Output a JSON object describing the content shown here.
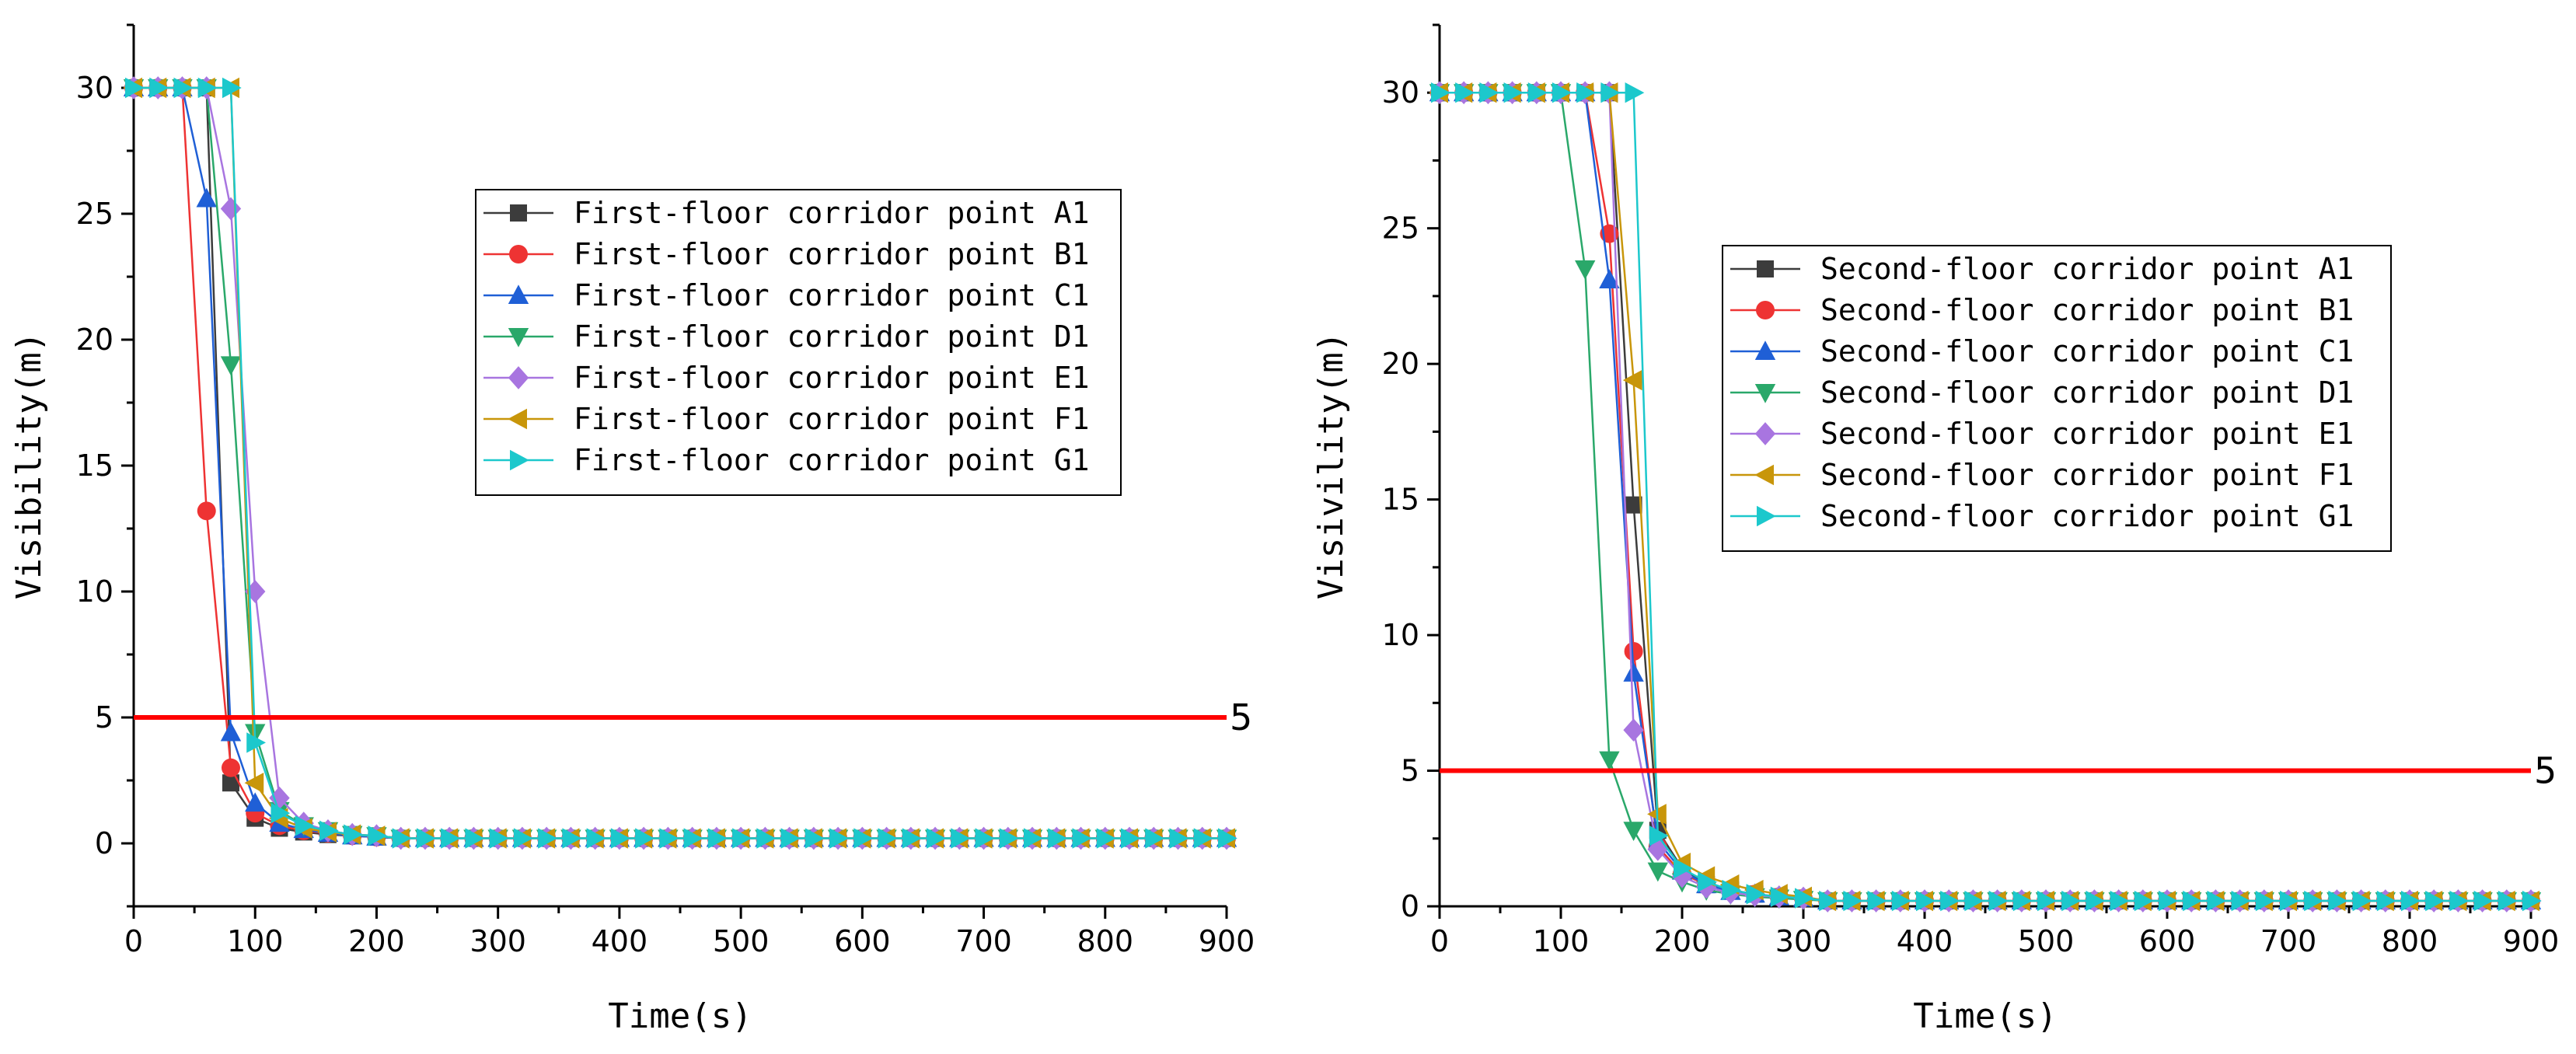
{
  "chart_data": [
    {
      "type": "line",
      "title": "",
      "xlabel": "Time(s)",
      "ylabel": "Visibility(m)",
      "xlim": [
        0,
        900
      ],
      "ylim": [
        -2.5,
        32.5
      ],
      "xticks": [
        0,
        100,
        200,
        300,
        400,
        500,
        600,
        700,
        800,
        900
      ],
      "yticks": [
        0,
        5,
        10,
        15,
        20,
        25,
        30
      ],
      "grid": false,
      "legend_position": "center-right",
      "reference_line": {
        "y": 5,
        "label": "5",
        "color": "#ff0000"
      },
      "series": [
        {
          "name": "First-floor corridor point A1",
          "marker": "square",
          "color": "#3c3c3c",
          "points": [
            [
              0,
              30
            ],
            [
              20,
              30
            ],
            [
              40,
              30
            ],
            [
              60,
              30
            ],
            [
              80,
              2.4
            ],
            [
              100,
              1.0
            ],
            [
              120,
              0.6
            ],
            [
              140,
              0.45
            ],
            [
              160,
              0.35
            ],
            [
              180,
              0.3
            ],
            [
              200,
              0.25
            ]
          ]
        },
        {
          "name": "First-floor corridor point B1",
          "marker": "circle",
          "color": "#ee3333",
          "points": [
            [
              0,
              30
            ],
            [
              20,
              30
            ],
            [
              40,
              30
            ],
            [
              60,
              13.2
            ],
            [
              80,
              3.0
            ],
            [
              100,
              1.2
            ],
            [
              120,
              0.7
            ],
            [
              140,
              0.5
            ],
            [
              160,
              0.4
            ],
            [
              180,
              0.3
            ],
            [
              200,
              0.25
            ]
          ]
        },
        {
          "name": "First-floor corridor point C1",
          "marker": "triangle-up",
          "color": "#1f5fd6",
          "points": [
            [
              0,
              30
            ],
            [
              20,
              30
            ],
            [
              40,
              30
            ],
            [
              60,
              25.6
            ],
            [
              80,
              4.4
            ],
            [
              100,
              1.6
            ],
            [
              120,
              0.8
            ],
            [
              140,
              0.55
            ],
            [
              160,
              0.4
            ],
            [
              180,
              0.3
            ],
            [
              200,
              0.25
            ]
          ]
        },
        {
          "name": "First-floor corridor point D1",
          "marker": "triangle-down",
          "color": "#2aa86a",
          "points": [
            [
              0,
              30
            ],
            [
              20,
              30
            ],
            [
              40,
              30
            ],
            [
              60,
              30
            ],
            [
              80,
              19.0
            ],
            [
              100,
              4.4
            ],
            [
              120,
              1.3
            ],
            [
              140,
              0.7
            ],
            [
              160,
              0.5
            ],
            [
              180,
              0.35
            ],
            [
              200,
              0.3
            ]
          ]
        },
        {
          "name": "First-floor corridor point E1",
          "marker": "diamond",
          "color": "#a875e0",
          "points": [
            [
              0,
              30
            ],
            [
              20,
              30
            ],
            [
              40,
              30
            ],
            [
              60,
              30
            ],
            [
              80,
              25.2
            ],
            [
              100,
              10.0
            ],
            [
              120,
              1.8
            ],
            [
              140,
              0.8
            ],
            [
              160,
              0.5
            ],
            [
              180,
              0.35
            ],
            [
              200,
              0.3
            ]
          ]
        },
        {
          "name": "First-floor corridor point F1",
          "marker": "triangle-left",
          "color": "#c8960a",
          "points": [
            [
              0,
              30
            ],
            [
              20,
              30
            ],
            [
              40,
              30
            ],
            [
              60,
              30
            ],
            [
              80,
              30
            ],
            [
              100,
              2.4
            ],
            [
              120,
              1.0
            ],
            [
              140,
              0.6
            ],
            [
              160,
              0.45
            ],
            [
              180,
              0.35
            ],
            [
              200,
              0.3
            ]
          ]
        },
        {
          "name": "First-floor corridor point G1",
          "marker": "triangle-right",
          "color": "#1cc8cc",
          "points": [
            [
              0,
              30
            ],
            [
              20,
              30
            ],
            [
              40,
              30
            ],
            [
              60,
              30
            ],
            [
              80,
              30
            ],
            [
              100,
              4.0
            ],
            [
              120,
              1.2
            ],
            [
              140,
              0.7
            ],
            [
              160,
              0.5
            ],
            [
              180,
              0.35
            ],
            [
              200,
              0.3
            ]
          ]
        }
      ]
    },
    {
      "type": "line",
      "title": "",
      "xlabel": "Time(s)",
      "ylabel": "Visivility(m)",
      "xlim": [
        0,
        900
      ],
      "ylim": [
        0,
        32.5
      ],
      "xticks": [
        0,
        100,
        200,
        300,
        400,
        500,
        600,
        700,
        800,
        900
      ],
      "yticks": [
        0,
        5,
        10,
        15,
        20,
        25,
        30
      ],
      "grid": false,
      "legend_position": "center-right",
      "reference_line": {
        "y": 5,
        "label": "5",
        "color": "#ff0000"
      },
      "series": [
        {
          "name": "Second-floor corridor point A1",
          "marker": "square",
          "color": "#3c3c3c",
          "points": [
            [
              0,
              30
            ],
            [
              20,
              30
            ],
            [
              40,
              30
            ],
            [
              60,
              30
            ],
            [
              80,
              30
            ],
            [
              100,
              30
            ],
            [
              120,
              30
            ],
            [
              140,
              30
            ],
            [
              160,
              14.8
            ],
            [
              180,
              2.8
            ],
            [
              200,
              1.4
            ],
            [
              220,
              0.8
            ],
            [
              240,
              0.6
            ],
            [
              260,
              0.45
            ],
            [
              280,
              0.35
            ],
            [
              300,
              0.3
            ]
          ]
        },
        {
          "name": "Second-floor corridor point B1",
          "marker": "circle",
          "color": "#ee3333",
          "points": [
            [
              0,
              30
            ],
            [
              20,
              30
            ],
            [
              40,
              30
            ],
            [
              60,
              30
            ],
            [
              80,
              30
            ],
            [
              100,
              30
            ],
            [
              120,
              30
            ],
            [
              140,
              24.8
            ],
            [
              160,
              9.4
            ],
            [
              180,
              2.2
            ],
            [
              200,
              1.2
            ],
            [
              220,
              0.8
            ],
            [
              240,
              0.55
            ],
            [
              260,
              0.45
            ],
            [
              280,
              0.35
            ],
            [
              300,
              0.3
            ]
          ]
        },
        {
          "name": "Second-floor corridor point C1",
          "marker": "triangle-up",
          "color": "#1f5fd6",
          "points": [
            [
              0,
              30
            ],
            [
              20,
              30
            ],
            [
              40,
              30
            ],
            [
              60,
              30
            ],
            [
              80,
              30
            ],
            [
              100,
              30
            ],
            [
              120,
              30
            ],
            [
              140,
              23.1
            ],
            [
              160,
              8.6
            ],
            [
              180,
              2.4
            ],
            [
              200,
              1.3
            ],
            [
              220,
              0.8
            ],
            [
              240,
              0.55
            ],
            [
              260,
              0.45
            ],
            [
              280,
              0.35
            ],
            [
              300,
              0.3
            ]
          ]
        },
        {
          "name": "Second-floor corridor point D1",
          "marker": "triangle-down",
          "color": "#2aa86a",
          "points": [
            [
              0,
              30
            ],
            [
              20,
              30
            ],
            [
              40,
              30
            ],
            [
              60,
              30
            ],
            [
              80,
              30
            ],
            [
              100,
              30
            ],
            [
              120,
              23.5
            ],
            [
              140,
              5.4
            ],
            [
              160,
              2.8
            ],
            [
              180,
              1.3
            ],
            [
              200,
              0.9
            ],
            [
              220,
              0.6
            ],
            [
              240,
              0.45
            ],
            [
              260,
              0.35
            ],
            [
              280,
              0.3
            ],
            [
              300,
              0.25
            ]
          ]
        },
        {
          "name": "Second-floor corridor point E1",
          "marker": "diamond",
          "color": "#a875e0",
          "points": [
            [
              0,
              30
            ],
            [
              20,
              30
            ],
            [
              40,
              30
            ],
            [
              60,
              30
            ],
            [
              80,
              30
            ],
            [
              100,
              30
            ],
            [
              120,
              30
            ],
            [
              140,
              30
            ],
            [
              160,
              6.5
            ],
            [
              180,
              2.1
            ],
            [
              200,
              1.1
            ],
            [
              220,
              0.7
            ],
            [
              240,
              0.5
            ],
            [
              260,
              0.4
            ],
            [
              280,
              0.35
            ],
            [
              300,
              0.3
            ]
          ]
        },
        {
          "name": "Second-floor corridor point F1",
          "marker": "triangle-left",
          "color": "#c8960a",
          "points": [
            [
              0,
              30
            ],
            [
              20,
              30
            ],
            [
              40,
              30
            ],
            [
              60,
              30
            ],
            [
              80,
              30
            ],
            [
              100,
              30
            ],
            [
              120,
              30
            ],
            [
              140,
              30
            ],
            [
              160,
              19.4
            ],
            [
              180,
              3.4
            ],
            [
              200,
              1.6
            ],
            [
              220,
              1.1
            ],
            [
              240,
              0.8
            ],
            [
              260,
              0.6
            ],
            [
              280,
              0.45
            ],
            [
              300,
              0.35
            ]
          ]
        },
        {
          "name": "Second-floor corridor point G1",
          "marker": "triangle-right",
          "color": "#1cc8cc",
          "points": [
            [
              0,
              30
            ],
            [
              20,
              30
            ],
            [
              40,
              30
            ],
            [
              60,
              30
            ],
            [
              80,
              30
            ],
            [
              100,
              30
            ],
            [
              120,
              30
            ],
            [
              140,
              30
            ],
            [
              160,
              30
            ],
            [
              180,
              2.6
            ],
            [
              200,
              1.4
            ],
            [
              220,
              0.9
            ],
            [
              240,
              0.6
            ],
            [
              260,
              0.45
            ],
            [
              280,
              0.35
            ],
            [
              300,
              0.3
            ]
          ]
        }
      ]
    }
  ],
  "tail_value": 0.2,
  "tail_end": 900
}
